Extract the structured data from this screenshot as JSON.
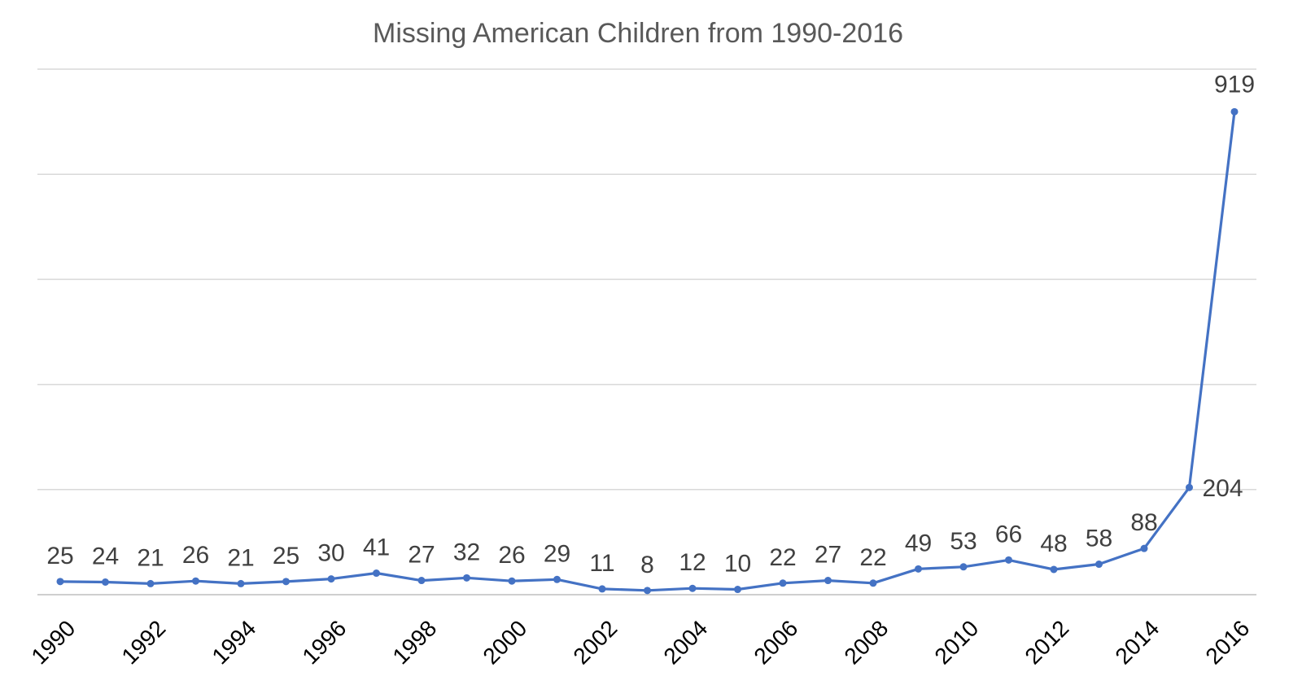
{
  "chart_data": {
    "type": "line",
    "title": "Missing American Children from 1990-2016",
    "xlabel": "",
    "ylabel": "",
    "x": [
      1990,
      1991,
      1992,
      1993,
      1994,
      1995,
      1996,
      1997,
      1998,
      1999,
      2000,
      2001,
      2002,
      2003,
      2004,
      2005,
      2006,
      2007,
      2008,
      2009,
      2010,
      2011,
      2012,
      2013,
      2014,
      2015,
      2016
    ],
    "x_tick_labels": [
      "1990",
      "1992",
      "1994",
      "1996",
      "1998",
      "2000",
      "2002",
      "2004",
      "2006",
      "2008",
      "2010",
      "2012",
      "2014",
      "2016"
    ],
    "series": [
      {
        "values": [
          25,
          24,
          21,
          26,
          21,
          25,
          30,
          41,
          27,
          32,
          26,
          29,
          11,
          8,
          12,
          10,
          22,
          27,
          22,
          49,
          53,
          66,
          48,
          58,
          88,
          204,
          919
        ],
        "color": "#4472c4"
      }
    ],
    "ylim": [
      0,
      1000
    ],
    "gridlines": true,
    "y_tick_labels_shown": false,
    "legend": "none"
  }
}
